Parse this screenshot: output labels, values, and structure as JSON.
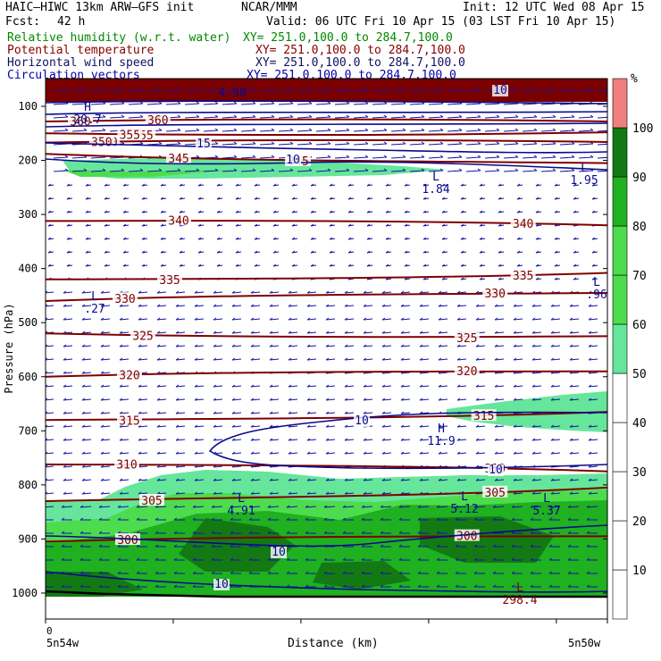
{
  "header": {
    "model": "HAIC–HIWC 13km ARW–GFS init",
    "agency": "NCAR/MMM",
    "init": "Init: 12 UTC Wed 08 Apr 15",
    "fcst_label": "Fcst:",
    "fcst_value": "42 h",
    "valid": "Valid: 06 UTC Fri 10 Apr 15 (03 LST Fri 10 Apr 15)",
    "fields": [
      {
        "name": "Relative humidity (w.r.t. water)",
        "xy": "XY= 251.0,100.0 to 284.7,100.0"
      },
      {
        "name": "Potential temperature",
        "xy": "XY= 251.0,100.0 to 284.7,100.0"
      },
      {
        "name": "Horizontal wind speed",
        "xy": "XY= 251.0,100.0 to 284.7,100.0"
      },
      {
        "name": "Circulation vectors",
        "xy": "XY= 251.0,100.0 to 284.7,100.0"
      }
    ]
  },
  "colors": {
    "rh_30_40": "#e6f5e6",
    "rh_50": "#66e69a",
    "rh_60": "#4ddc4d",
    "rh_80": "#1fb11f",
    "rh_90": "#137a13",
    "rh_top": "#f08080",
    "theta": "#800000",
    "wind": "#0a0a8c",
    "vectors": "#1414aa"
  },
  "chart_data": {
    "type": "cross-section",
    "ylabel": "Pressure (hPa)",
    "xlabel": "Distance (km)",
    "x_start_label": "0",
    "x_left_label": "5n54w",
    "x_right_label": "5n50w",
    "y_ticks": [
      100,
      200,
      300,
      400,
      500,
      600,
      700,
      800,
      900,
      1000
    ],
    "ylim": [
      1050,
      55
    ],
    "colorbar": {
      "unit": "%",
      "ticks": [
        10,
        20,
        30,
        40,
        50,
        60,
        70,
        80,
        90,
        100
      ]
    },
    "theta_contours": [
      {
        "value": 360,
        "p_left": 128,
        "p_right": 128,
        "label": "360"
      },
      {
        "value": 355,
        "p_left": 150,
        "p_right": 148,
        "label": "355"
      },
      {
        "value": 350,
        "p_left": 167,
        "p_right": 166,
        "label": "350"
      },
      {
        "value": 345,
        "p_left": 188,
        "p_right": 205,
        "label": "345"
      },
      {
        "value": 340,
        "p_left": 312,
        "p_right": 320,
        "label": "340"
      },
      {
        "value": 335,
        "p_left": 420,
        "p_right": 408,
        "label": "335"
      },
      {
        "value": 330,
        "p_left": 460,
        "p_right": 445,
        "label": "330"
      },
      {
        "value": 325,
        "p_left": 520,
        "p_right": 525,
        "label": "325"
      },
      {
        "value": 320,
        "p_left": 600,
        "p_right": 590,
        "label": "320"
      },
      {
        "value": 315,
        "p_left": 680,
        "p_right": 665,
        "label": "315"
      },
      {
        "value": 310,
        "p_left": 762,
        "p_right": 775,
        "label": "310"
      },
      {
        "value": 305,
        "p_left": 830,
        "p_right": 805,
        "label": "305"
      },
      {
        "value": 300,
        "p_left": 905,
        "p_right": 895,
        "label": "300"
      }
    ],
    "wind_contour_labels": [
      "15",
      "10",
      "10",
      "10",
      "10",
      "10",
      "10"
    ],
    "extrema": [
      {
        "kind": "H",
        "value": "20.7"
      },
      {
        "kind": "L",
        "value": "1.84"
      },
      {
        "kind": "L",
        "value": "1.95"
      },
      {
        "kind": "L",
        "value": ".27"
      },
      {
        "kind": "L",
        "value": ".96"
      },
      {
        "kind": "H",
        "value": "11.9"
      },
      {
        "kind": "L",
        "value": "4.91"
      },
      {
        "kind": "L",
        "value": "5.12"
      },
      {
        "kind": "L",
        "value": "5.37"
      },
      {
        "kind": "L",
        "value": "298.4"
      },
      {
        "kind": "",
        "value": "4.98"
      }
    ]
  }
}
